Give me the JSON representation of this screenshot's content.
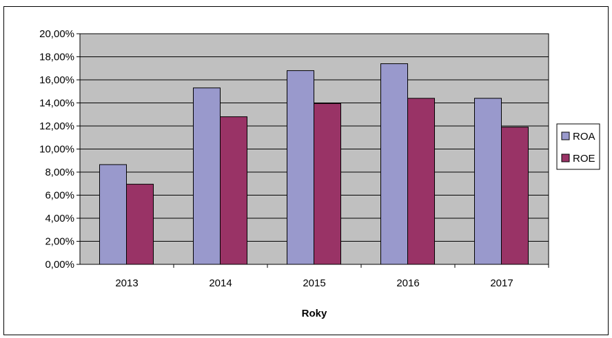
{
  "chart_data": {
    "type": "bar",
    "title": "",
    "xlabel": "Roky",
    "ylabel": "",
    "categories": [
      "2013",
      "2014",
      "2015",
      "2016",
      "2017"
    ],
    "ylim": [
      0,
      20
    ],
    "yticks": [
      0,
      2,
      4,
      6,
      8,
      10,
      12,
      14,
      16,
      18,
      20
    ],
    "ytick_labels": [
      "0,00%",
      "2,00%",
      "4,00%",
      "6,00%",
      "8,00%",
      "10,00%",
      "12,00%",
      "14,00%",
      "16,00%",
      "18,00%",
      "20,00%"
    ],
    "value_unit": "%",
    "grid": true,
    "legend_position": "right",
    "series": [
      {
        "name": "ROA",
        "color": "#9999cc",
        "values": [
          8.65,
          15.3,
          16.8,
          17.4,
          14.4
        ]
      },
      {
        "name": "ROE",
        "color": "#993366",
        "values": [
          6.95,
          12.8,
          13.95,
          14.4,
          11.9
        ]
      }
    ],
    "plot_background": "#c0c0c0"
  }
}
